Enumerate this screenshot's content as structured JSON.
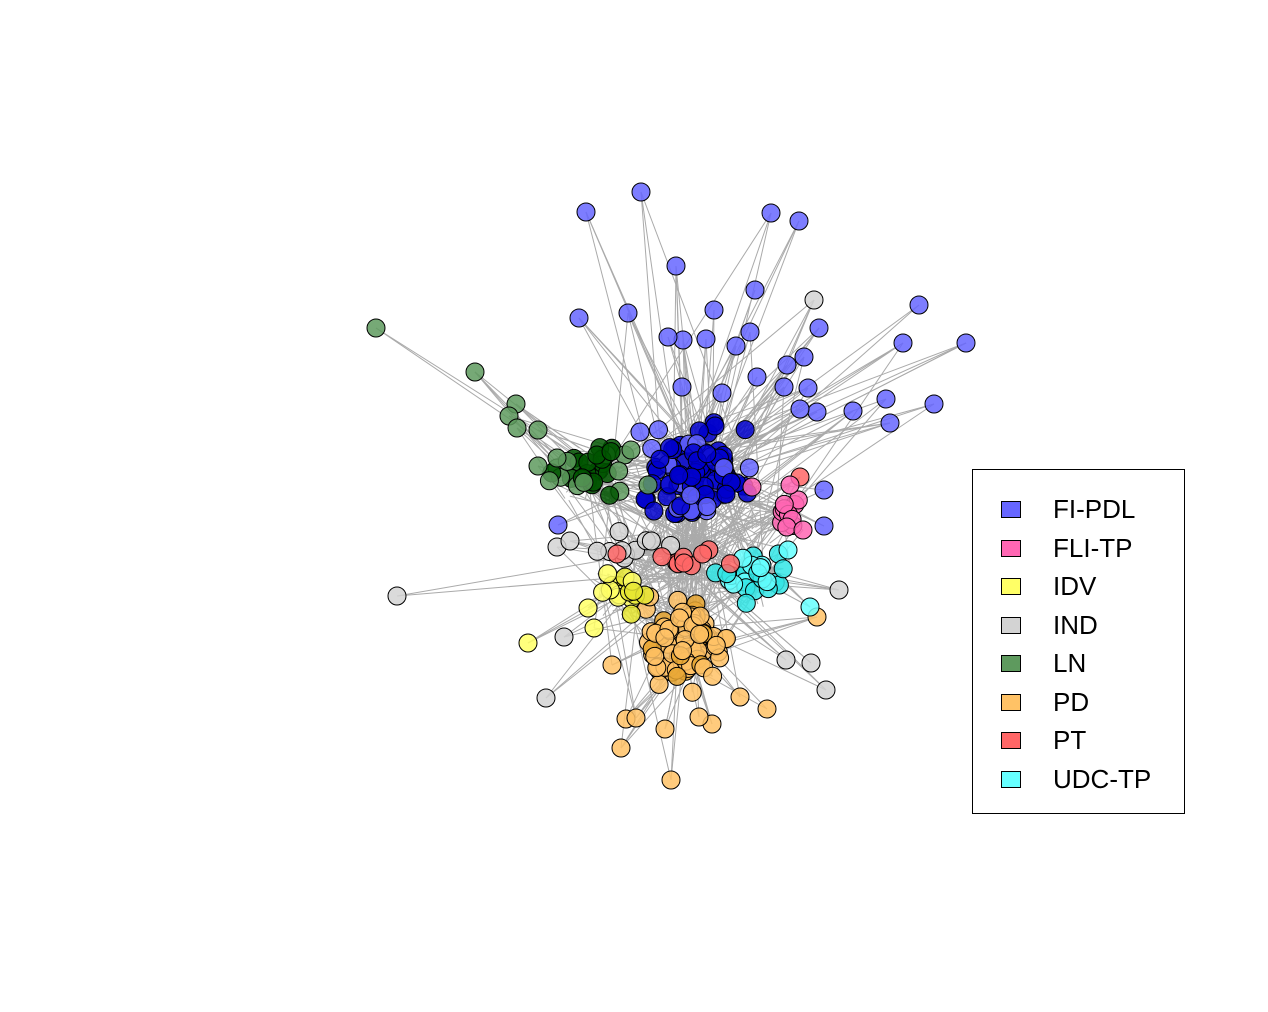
{
  "legend": {
    "items": [
      {
        "label": "FI-PDL",
        "color": "#6666ff"
      },
      {
        "label": "FLI-TP",
        "color": "#ff66b3"
      },
      {
        "label": "IDV",
        "color": "#ffff66"
      },
      {
        "label": "IND",
        "color": "#d3d3d3"
      },
      {
        "label": "LN",
        "color": "#5e9a5e"
      },
      {
        "label": "PD",
        "color": "#ffc266"
      },
      {
        "label": "PT",
        "color": "#ff6666"
      },
      {
        "label": "UDC-TP",
        "color": "#66ffff"
      }
    ]
  },
  "network": {
    "edge_color": "#aaaaaa",
    "node_border_color": "#000000",
    "core_colors": {
      "FI-PDL": "#0000cc",
      "LN": "#005500",
      "PD": "#e6a530",
      "UDC-TP": "#33e6e6",
      "IDV": "#e6e633"
    }
  }
}
